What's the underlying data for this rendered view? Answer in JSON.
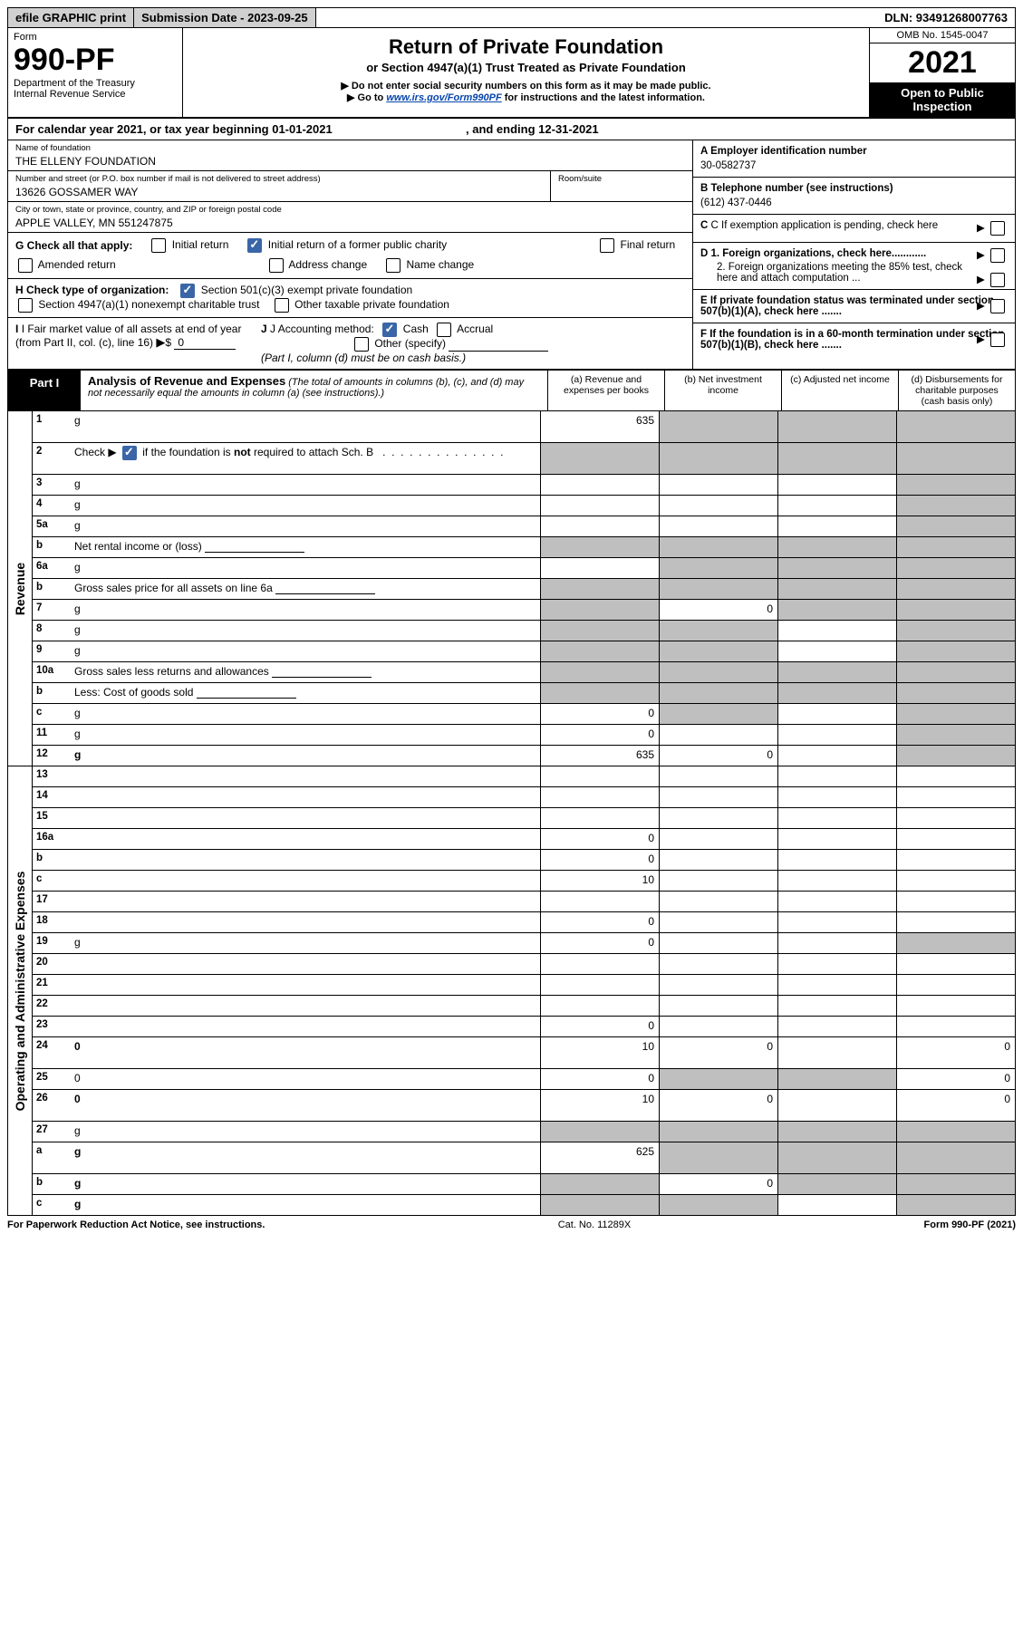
{
  "topbar": {
    "efile": "efile GRAPHIC print",
    "submission_label": "Submission Date - 2023-09-25",
    "dln": "DLN: 93491268007763"
  },
  "header": {
    "form_word": "Form",
    "form_no": "990-PF",
    "dept1": "Department of the Treasury",
    "dept2": "Internal Revenue Service",
    "title": "Return of Private Foundation",
    "subtitle": "or Section 4947(a)(1) Trust Treated as Private Foundation",
    "note1": "▶ Do not enter social security numbers on this form as it may be made public.",
    "note2_pre": "▶ Go to ",
    "note2_link": "www.irs.gov/Form990PF",
    "note2_post": " for instructions and the latest information.",
    "omb": "OMB No. 1545-0047",
    "year": "2021",
    "open": "Open to Public Inspection"
  },
  "calyear": {
    "text_a": "For calendar year 2021, or tax year beginning 01-01-2021",
    "text_b": ", and ending 12-31-2021"
  },
  "info": {
    "name_label": "Name of foundation",
    "name": "THE ELLENY FOUNDATION",
    "addr_label": "Number and street (or P.O. box number if mail is not delivered to street address)",
    "addr": "13626 GOSSAMER WAY",
    "room_label": "Room/suite",
    "city_label": "City or town, state or province, country, and ZIP or foreign postal code",
    "city": "APPLE VALLEY, MN  551247875",
    "ein_label": "A Employer identification number",
    "ein": "30-0582737",
    "phone_label": "B Telephone number (see instructions)",
    "phone": "(612) 437-0446",
    "c_label": "C If exemption application is pending, check here",
    "d1": "D 1. Foreign organizations, check here............",
    "d2": "2. Foreign organizations meeting the 85% test, check here and attach computation ...",
    "e": "E   If private foundation status was terminated under section 507(b)(1)(A), check here .......",
    "f": "F   If the foundation is in a 60-month termination under section 507(b)(1)(B), check here .......",
    "g_label": "G Check all that apply:",
    "g_opts": [
      "Initial return",
      "Initial return of a former public charity",
      "Final return",
      "Amended return",
      "Address change",
      "Name change"
    ],
    "h_label": "H Check type of organization:",
    "h_opt1": "Section 501(c)(3) exempt private foundation",
    "h_opt2": "Section 4947(a)(1) nonexempt charitable trust",
    "h_opt3": "Other taxable private foundation",
    "i_label": "I Fair market value of all assets at end of year (from Part II, col. (c), line 16)",
    "i_val": "0",
    "j_label": "J Accounting method:",
    "j_cash": "Cash",
    "j_accrual": "Accrual",
    "j_other": "Other (specify)",
    "j_note": "(Part I, column (d) must be on cash basis.)"
  },
  "part1": {
    "tab": "Part I",
    "title": "Analysis of Revenue and Expenses",
    "sub": " (The total of amounts in columns (b), (c), and (d) may not necessarily equal the amounts in column (a) (see instructions).)",
    "col_a": "(a)   Revenue and expenses per books",
    "col_b": "(b)   Net investment income",
    "col_c": "(c)   Adjusted net income",
    "col_d": "(d)   Disbursements for charitable purposes (cash basis only)"
  },
  "side": {
    "revenue": "Revenue",
    "expenses": "Operating and Administrative Expenses"
  },
  "rows": [
    {
      "n": "1",
      "d": "g",
      "a": "635",
      "b": "g",
      "c": "g",
      "tall": true
    },
    {
      "n": "2",
      "d": "Check ▶ ☑ if the foundation is not required to attach Sch. B",
      "nocells": true,
      "bold_inline": true,
      "tall": true,
      "check": true
    },
    {
      "n": "3",
      "d": "g",
      "a": "",
      "b": "",
      "c": ""
    },
    {
      "n": "4",
      "d": "g",
      "a": "",
      "b": "",
      "c": ""
    },
    {
      "n": "5a",
      "d": "g",
      "a": "",
      "b": "",
      "c": ""
    },
    {
      "n": "b",
      "d": "Net rental income or (loss)",
      "nocells_right": true,
      "underline": true
    },
    {
      "n": "6a",
      "d": "g",
      "a": "",
      "b": "g",
      "c": "g"
    },
    {
      "n": "b",
      "d": "Gross sales price for all assets on line 6a",
      "nocells_right": true,
      "underline": true
    },
    {
      "n": "7",
      "d": "g",
      "a": "g",
      "b": "0",
      "c": "g"
    },
    {
      "n": "8",
      "d": "g",
      "a": "g",
      "b": "g",
      "c": ""
    },
    {
      "n": "9",
      "d": "g",
      "a": "g",
      "b": "g",
      "c": ""
    },
    {
      "n": "10a",
      "d": "Gross sales less returns and allowances",
      "nocells_right": true,
      "underline": true
    },
    {
      "n": "b",
      "d": "Less: Cost of goods sold",
      "nocells_right": true,
      "underline": true
    },
    {
      "n": "c",
      "d": "g",
      "a": "0",
      "b": "g",
      "c": ""
    },
    {
      "n": "11",
      "d": "g",
      "a": "0",
      "b": "",
      "c": ""
    },
    {
      "n": "12",
      "d": "g",
      "a": "635",
      "b": "0",
      "c": "",
      "bold": true
    }
  ],
  "exp_rows": [
    {
      "n": "13",
      "d": "",
      "a": "",
      "b": "",
      "c": ""
    },
    {
      "n": "14",
      "d": "",
      "a": "",
      "b": "",
      "c": ""
    },
    {
      "n": "15",
      "d": "",
      "a": "",
      "b": "",
      "c": ""
    },
    {
      "n": "16a",
      "d": "",
      "a": "0",
      "b": "",
      "c": ""
    },
    {
      "n": "b",
      "d": "",
      "a": "0",
      "b": "",
      "c": ""
    },
    {
      "n": "c",
      "d": "",
      "a": "10",
      "b": "",
      "c": ""
    },
    {
      "n": "17",
      "d": "",
      "a": "",
      "b": "",
      "c": ""
    },
    {
      "n": "18",
      "d": "",
      "a": "0",
      "b": "",
      "c": ""
    },
    {
      "n": "19",
      "d": "g",
      "a": "0",
      "b": "",
      "c": ""
    },
    {
      "n": "20",
      "d": "",
      "a": "",
      "b": "",
      "c": ""
    },
    {
      "n": "21",
      "d": "",
      "a": "",
      "b": "",
      "c": ""
    },
    {
      "n": "22",
      "d": "",
      "a": "",
      "b": "",
      "c": ""
    },
    {
      "n": "23",
      "d": "",
      "a": "0",
      "b": "",
      "c": ""
    },
    {
      "n": "24",
      "d": "0",
      "a": "10",
      "b": "0",
      "c": "",
      "bold": true,
      "tall": true
    },
    {
      "n": "25",
      "d": "0",
      "a": "0",
      "b": "g",
      "c": "g"
    },
    {
      "n": "26",
      "d": "0",
      "a": "10",
      "b": "0",
      "c": "",
      "bold": true,
      "tall": true
    },
    {
      "n": "27",
      "d": "g",
      "a": "g",
      "b": "g",
      "c": "g"
    },
    {
      "n": "a",
      "d": "g",
      "a": "625",
      "b": "g",
      "c": "g",
      "bold": true,
      "tall": true
    },
    {
      "n": "b",
      "d": "g",
      "a": "g",
      "b": "0",
      "c": "g",
      "bold": true
    },
    {
      "n": "c",
      "d": "g",
      "a": "g",
      "b": "g",
      "c": "",
      "bold": true
    }
  ],
  "footer": {
    "left": "For Paperwork Reduction Act Notice, see instructions.",
    "mid": "Cat. No. 11289X",
    "right": "Form 990-PF (2021)"
  },
  "colors": {
    "grey_cell": "#bfbfbf",
    "link": "#0645ad",
    "check_blue": "#3a66a7"
  }
}
